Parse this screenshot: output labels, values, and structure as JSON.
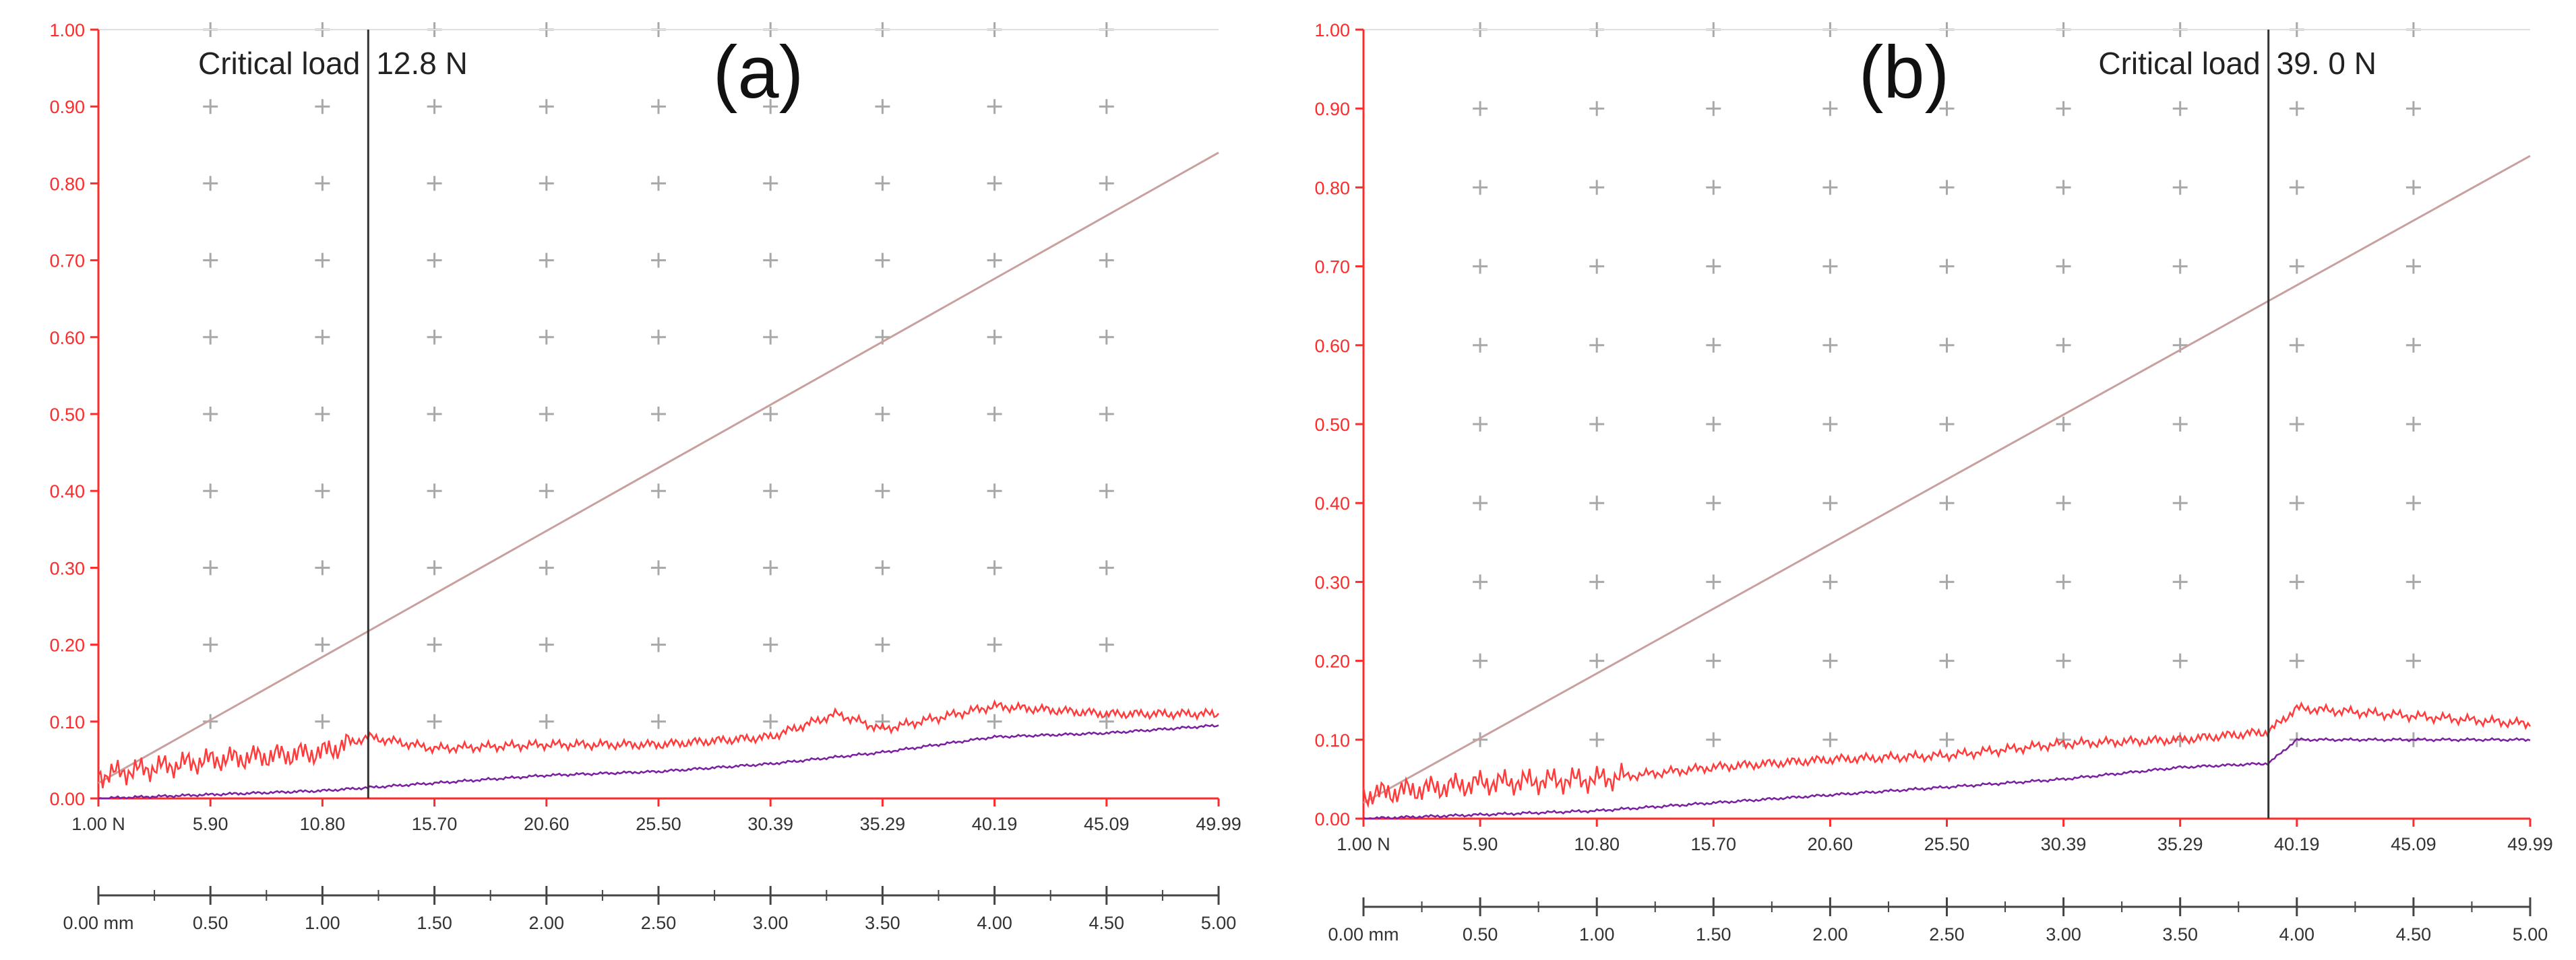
{
  "chart_data": [
    {
      "type": "line",
      "panel_label": "(a)",
      "annotation": "Critical load",
      "critical_value_text": "12.8 N",
      "critical_load_N": 12.8,
      "ylim": [
        0,
        1.0
      ],
      "y_ticks": [
        "0.00",
        "0.10",
        "0.20",
        "0.30",
        "0.40",
        "0.50",
        "0.60",
        "0.70",
        "0.80",
        "0.90",
        "1.00"
      ],
      "load_ticks": [
        "1.00 N",
        "5.90",
        "10.80",
        "15.70",
        "20.60",
        "25.50",
        "30.39",
        "35.29",
        "40.19",
        "45.09",
        "49.99"
      ],
      "dist_ticks": [
        "0.00 mm",
        "0.50",
        "1.00",
        "1.50",
        "2.00",
        "2.50",
        "3.00",
        "3.50",
        "4.00",
        "4.50",
        "5.00"
      ],
      "grid": "plus markers",
      "series": [
        {
          "color": "#c9a0a0",
          "x_load": [
            1.0,
            49.99
          ],
          "y": [
            0.02,
            0.84
          ]
        },
        {
          "color": "#ff3b3b",
          "x_load": [
            1.0,
            5.9,
            10.8,
            12.8,
            15.7,
            20.6,
            25.5,
            30.39,
            33.3,
            35.29,
            40.19,
            45.09,
            49.99
          ],
          "y": [
            0.03,
            0.05,
            0.06,
            0.08,
            0.065,
            0.07,
            0.07,
            0.08,
            0.11,
            0.09,
            0.12,
            0.11,
            0.11
          ]
        },
        {
          "color": "#7a1fa2",
          "x_load": [
            1.0,
            5.9,
            10.8,
            15.7,
            20.6,
            25.5,
            30.39,
            35.29,
            40.19,
            45.09,
            49.99
          ],
          "y": [
            0.0,
            0.005,
            0.01,
            0.02,
            0.03,
            0.035,
            0.045,
            0.06,
            0.08,
            0.085,
            0.095
          ]
        }
      ]
    },
    {
      "type": "line",
      "panel_label": "(b)",
      "annotation": "Critical load",
      "critical_value_text": "39. 0 N",
      "critical_load_N": 39.0,
      "ylim": [
        0,
        1.0
      ],
      "y_ticks": [
        "0.00",
        "0.10",
        "0.20",
        "0.30",
        "0.40",
        "0.50",
        "0.60",
        "0.70",
        "0.80",
        "0.90",
        "1.00"
      ],
      "load_ticks": [
        "1.00 N",
        "5.90",
        "10.80",
        "15.70",
        "20.60",
        "25.50",
        "30.39",
        "35.29",
        "40.19",
        "45.09",
        "49.99"
      ],
      "dist_ticks": [
        "0.00 mm",
        "0.50",
        "1.00",
        "1.50",
        "2.00",
        "2.50",
        "3.00",
        "3.50",
        "4.00",
        "4.50",
        "5.00"
      ],
      "grid": "plus markers",
      "series": [
        {
          "color": "#c9a0a0",
          "x_load": [
            1.0,
            49.99
          ],
          "y": [
            0.02,
            0.84
          ]
        },
        {
          "color": "#ff3b3b",
          "x_load": [
            1.0,
            5.9,
            10.8,
            15.7,
            20.6,
            25.5,
            30.39,
            35.29,
            39.0,
            40.19,
            45.09,
            49.99
          ],
          "y": [
            0.03,
            0.045,
            0.05,
            0.065,
            0.075,
            0.08,
            0.095,
            0.1,
            0.11,
            0.14,
            0.13,
            0.12
          ]
        },
        {
          "color": "#7a1fa2",
          "x_load": [
            1.0,
            5.9,
            10.8,
            15.7,
            20.6,
            25.5,
            30.39,
            35.29,
            39.0,
            40.19,
            45.09,
            49.99
          ],
          "y": [
            0.0,
            0.005,
            0.01,
            0.02,
            0.03,
            0.04,
            0.05,
            0.065,
            0.07,
            0.1,
            0.1,
            0.1
          ]
        }
      ]
    }
  ]
}
